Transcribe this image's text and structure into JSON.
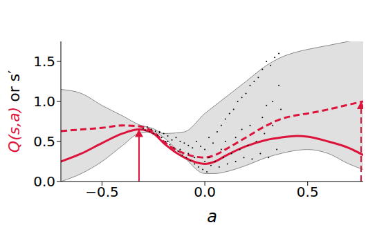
{
  "chart_data": {
    "type": "line",
    "xlabel": "a",
    "ylabel_parts": [
      {
        "text": "Q(s,a)",
        "color": "#dc143c"
      },
      {
        "text": " or s′",
        "color": "#000000"
      }
    ],
    "xlim": [
      -0.7,
      0.77
    ],
    "ylim": [
      0,
      1.75
    ],
    "xticks": [
      {
        "value": -0.5,
        "label": "−0.5"
      },
      {
        "value": 0,
        "label": "0.0"
      },
      {
        "value": 0.5,
        "label": "0.5"
      }
    ],
    "yticks": [
      {
        "value": 0,
        "label": "0.0"
      },
      {
        "value": 0.5,
        "label": "0.5"
      },
      {
        "value": 1,
        "label": "1.0"
      },
      {
        "value": 1.5,
        "label": "1.5"
      }
    ],
    "x": [
      -0.7,
      -0.6,
      -0.5,
      -0.4,
      -0.32,
      -0.25,
      -0.2,
      -0.1,
      0,
      0.05,
      0.1,
      0.2,
      0.3,
      0.37,
      0.45,
      0.5,
      0.6,
      0.7,
      0.77
    ],
    "band": {
      "color": "#e0e0e0",
      "lower": [
        0.0,
        0.1,
        0.25,
        0.45,
        0.6,
        0.62,
        0.55,
        0.3,
        0.1,
        0.1,
        0.12,
        0.2,
        0.3,
        0.35,
        0.39,
        0.4,
        0.35,
        0.22,
        0.15
      ],
      "upper": [
        1.15,
        1.1,
        0.95,
        0.82,
        0.71,
        0.66,
        0.6,
        0.62,
        0.85,
        0.95,
        1.05,
        1.25,
        1.45,
        1.55,
        1.62,
        1.65,
        1.7,
        1.75,
        1.78
      ]
    },
    "series": [
      {
        "name": "Q(s,a)",
        "color": "#dc143c",
        "line_style": "solid",
        "values": [
          0.25,
          0.35,
          0.48,
          0.6,
          0.65,
          0.6,
          0.48,
          0.3,
          0.22,
          0.25,
          0.32,
          0.44,
          0.52,
          0.55,
          0.57,
          0.56,
          0.5,
          0.42,
          0.33
        ]
      },
      {
        "name": "s′",
        "color": "#dc143c",
        "line_style": "dashed",
        "values": [
          0.63,
          0.65,
          0.67,
          0.7,
          0.69,
          0.62,
          0.5,
          0.35,
          0.3,
          0.33,
          0.4,
          0.55,
          0.7,
          0.78,
          0.83,
          0.85,
          0.9,
          0.96,
          1.0
        ]
      }
    ],
    "scatter": {
      "color": "#000000",
      "x": [
        -0.3,
        -0.29,
        -0.28,
        -0.27,
        -0.26,
        -0.25,
        -0.24,
        -0.23,
        -0.22,
        -0.21,
        -0.2,
        -0.19,
        -0.18,
        -0.17,
        -0.16,
        -0.15,
        -0.14,
        -0.13,
        -0.12,
        -0.11,
        -0.1,
        -0.09,
        -0.08,
        -0.07,
        -0.06,
        -0.05,
        -0.04,
        -0.03,
        -0.02,
        -0.01,
        0,
        0.01,
        0.02,
        0.03,
        0.04,
        0.05,
        0.06,
        0.07,
        0.08,
        0.09,
        0.1,
        0.11,
        0.12,
        0.13,
        0.14,
        0.15,
        0.16,
        0.17,
        0.18,
        0.19,
        0.2,
        0.21,
        0.22,
        0.23,
        0.24,
        0.25,
        0.26,
        0.27,
        0.28,
        0.29,
        0.3,
        0.31,
        0.32,
        0.33,
        0.34,
        0.35,
        0.36,
        0.37,
        -0.22,
        -0.18,
        -0.12,
        -0.05,
        0.02,
        0.08,
        0.15,
        0.22,
        0.28,
        0.33,
        0.36,
        0.3,
        0.18,
        0.1,
        0.0,
        -0.08
      ],
      "y": [
        0.66,
        0.64,
        0.68,
        0.62,
        0.65,
        0.6,
        0.63,
        0.58,
        0.61,
        0.55,
        0.6,
        0.5,
        0.57,
        0.46,
        0.52,
        0.42,
        0.55,
        0.38,
        0.5,
        0.33,
        0.48,
        0.3,
        0.45,
        0.26,
        0.42,
        0.22,
        0.5,
        0.18,
        0.44,
        0.15,
        0.4,
        0.12,
        0.55,
        0.2,
        0.48,
        0.25,
        0.62,
        0.18,
        0.7,
        0.3,
        0.78,
        0.22,
        0.85,
        0.35,
        0.9,
        0.25,
        1.0,
        0.4,
        1.05,
        0.3,
        1.1,
        0.45,
        1.2,
        0.28,
        1.25,
        0.5,
        1.3,
        0.35,
        1.4,
        0.6,
        1.5,
        0.3,
        1.45,
        0.7,
        1.55,
        0.4,
        1.6,
        0.9,
        0.62,
        0.5,
        0.4,
        0.3,
        0.3,
        0.4,
        0.55,
        0.7,
        0.8,
        1.0,
        1.2,
        0.95,
        0.65,
        0.5,
        0.25,
        0.35
      ]
    },
    "arrows": [
      {
        "x": -0.32,
        "y": 0.65,
        "color": "#dc143c",
        "line_style": "solid"
      },
      {
        "x": 0.76,
        "y": 1.0,
        "color": "#dc143c",
        "line_style": "dashed"
      }
    ]
  }
}
